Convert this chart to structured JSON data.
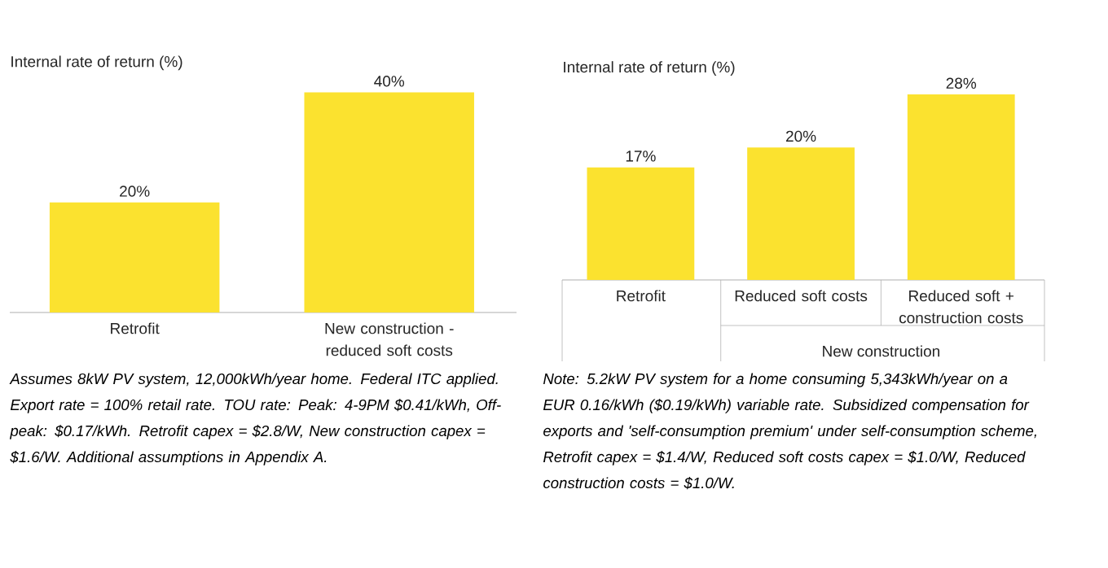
{
  "chart_data": [
    {
      "type": "bar",
      "ylabel": "Internal rate of return (%)",
      "categories": [
        "Retrofit",
        "New construction - reduced soft costs"
      ],
      "values": [
        20,
        40
      ],
      "value_labels": [
        "20%",
        "40%"
      ],
      "color": "#fbe22f",
      "annotations": [
        "Assumes 8kW PV system, 12,000kWh/year home. Federal ITC applied. Export rate = 100% retail rate. TOU rate: Peak: 4-9PM $0.41/kWh, Off-peak: $0.17/kWh. Retrofit capex = $2.8/W, New construction capex = $1.6/W. Additional assumptions in Appendix A."
      ]
    },
    {
      "type": "bar",
      "ylabel": "Internal rate of return (%)",
      "categories": [
        "Retrofit",
        "Reduced soft costs",
        "Reduced soft + construction costs"
      ],
      "values": [
        17,
        20,
        28
      ],
      "value_labels": [
        "17%",
        "20%",
        "28%"
      ],
      "color": "#fbe22f",
      "annotations": [
        "New construction",
        "Note: 5.2kW PV system for a home consuming 5,343kWh/year on a EUR 0.16/kWh ($0.19/kWh) variable rate. Subsidized compensation for exports and 'self-consumption premium' under self-consumption scheme, Retrofit capex = $1.4/W, Reduced soft costs capex = $1.0/W, Reduced construction costs = $1.0/W."
      ]
    }
  ]
}
